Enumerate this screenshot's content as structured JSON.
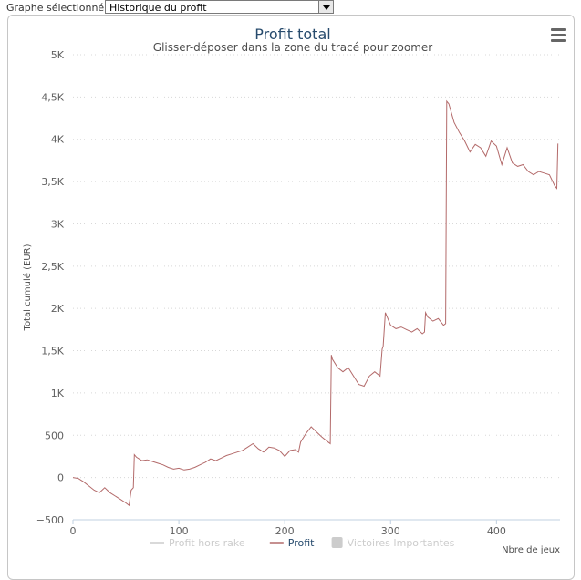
{
  "header": {
    "selector_label": "Graphe sélectionné :",
    "selector_value": "Historique du profit"
  },
  "chart_data": {
    "type": "line",
    "title": "Profit total",
    "subtitle": "Glisser-déposer dans la zone du tracé pour zoomer",
    "xlabel": "Nbre de jeux",
    "ylabel": "Total cumulé (EUR)",
    "xlim": [
      0,
      460
    ],
    "ylim": [
      -500,
      5000
    ],
    "x_ticks": [
      0,
      100,
      200,
      300,
      400
    ],
    "y_ticks": [
      {
        "v": -500,
        "label": "−500"
      },
      {
        "v": 0,
        "label": "0"
      },
      {
        "v": 500,
        "label": "500"
      },
      {
        "v": 1000,
        "label": "1K"
      },
      {
        "v": 1500,
        "label": "1,5K"
      },
      {
        "v": 2000,
        "label": "2K"
      },
      {
        "v": 2500,
        "label": "2,5K"
      },
      {
        "v": 3000,
        "label": "3K"
      },
      {
        "v": 3500,
        "label": "3,5K"
      },
      {
        "v": 4000,
        "label": "4K"
      },
      {
        "v": 4500,
        "label": "4,5K"
      },
      {
        "v": 5000,
        "label": "5K"
      }
    ],
    "legend": [
      {
        "name": "Profit hors rake",
        "color": "#cccccc",
        "active": false
      },
      {
        "name": "Profit",
        "color": "#b36a6a",
        "active": true
      },
      {
        "name": "Victoires Importantes",
        "color": "#cccccc",
        "active": false
      }
    ],
    "legend_position": "bottom",
    "grid": true,
    "line_color": "#b36a6a",
    "series": [
      {
        "name": "Profit",
        "x": [
          0,
          5,
          10,
          15,
          20,
          25,
          30,
          35,
          40,
          45,
          50,
          53,
          55,
          57,
          58,
          60,
          65,
          70,
          75,
          80,
          85,
          90,
          95,
          100,
          105,
          110,
          115,
          120,
          125,
          130,
          135,
          140,
          145,
          150,
          155,
          160,
          165,
          170,
          175,
          180,
          185,
          190,
          195,
          200,
          205,
          210,
          213,
          215,
          220,
          225,
          230,
          235,
          240,
          243,
          244,
          245,
          250,
          255,
          260,
          265,
          270,
          275,
          280,
          285,
          290,
          292,
          293,
          295,
          300,
          305,
          310,
          315,
          320,
          325,
          330,
          332,
          333,
          335,
          340,
          345,
          350,
          352,
          353,
          355,
          360,
          365,
          370,
          375,
          380,
          385,
          390,
          395,
          400,
          405,
          410,
          415,
          420,
          425,
          430,
          435,
          440,
          445,
          450,
          455,
          457,
          458
        ],
        "y": [
          0,
          -10,
          -50,
          -100,
          -150,
          -180,
          -120,
          -180,
          -220,
          -260,
          -300,
          -330,
          -150,
          -120,
          270,
          240,
          200,
          210,
          190,
          170,
          150,
          120,
          100,
          110,
          90,
          100,
          120,
          150,
          180,
          220,
          200,
          230,
          260,
          280,
          300,
          320,
          360,
          400,
          340,
          300,
          360,
          350,
          320,
          250,
          320,
          330,
          300,
          420,
          520,
          600,
          540,
          480,
          430,
          400,
          1450,
          1400,
          1300,
          1250,
          1300,
          1200,
          1100,
          1080,
          1200,
          1250,
          1200,
          1520,
          1550,
          1950,
          1800,
          1760,
          1780,
          1750,
          1720,
          1760,
          1700,
          1720,
          1950,
          1900,
          1850,
          1880,
          1800,
          1820,
          4450,
          4420,
          4200,
          4080,
          3980,
          3850,
          3940,
          3900,
          3800,
          3980,
          3920,
          3700,
          3900,
          3720,
          3680,
          3700,
          3620,
          3580,
          3620,
          3600,
          3580,
          3450,
          3420,
          3950
        ]
      }
    ]
  }
}
